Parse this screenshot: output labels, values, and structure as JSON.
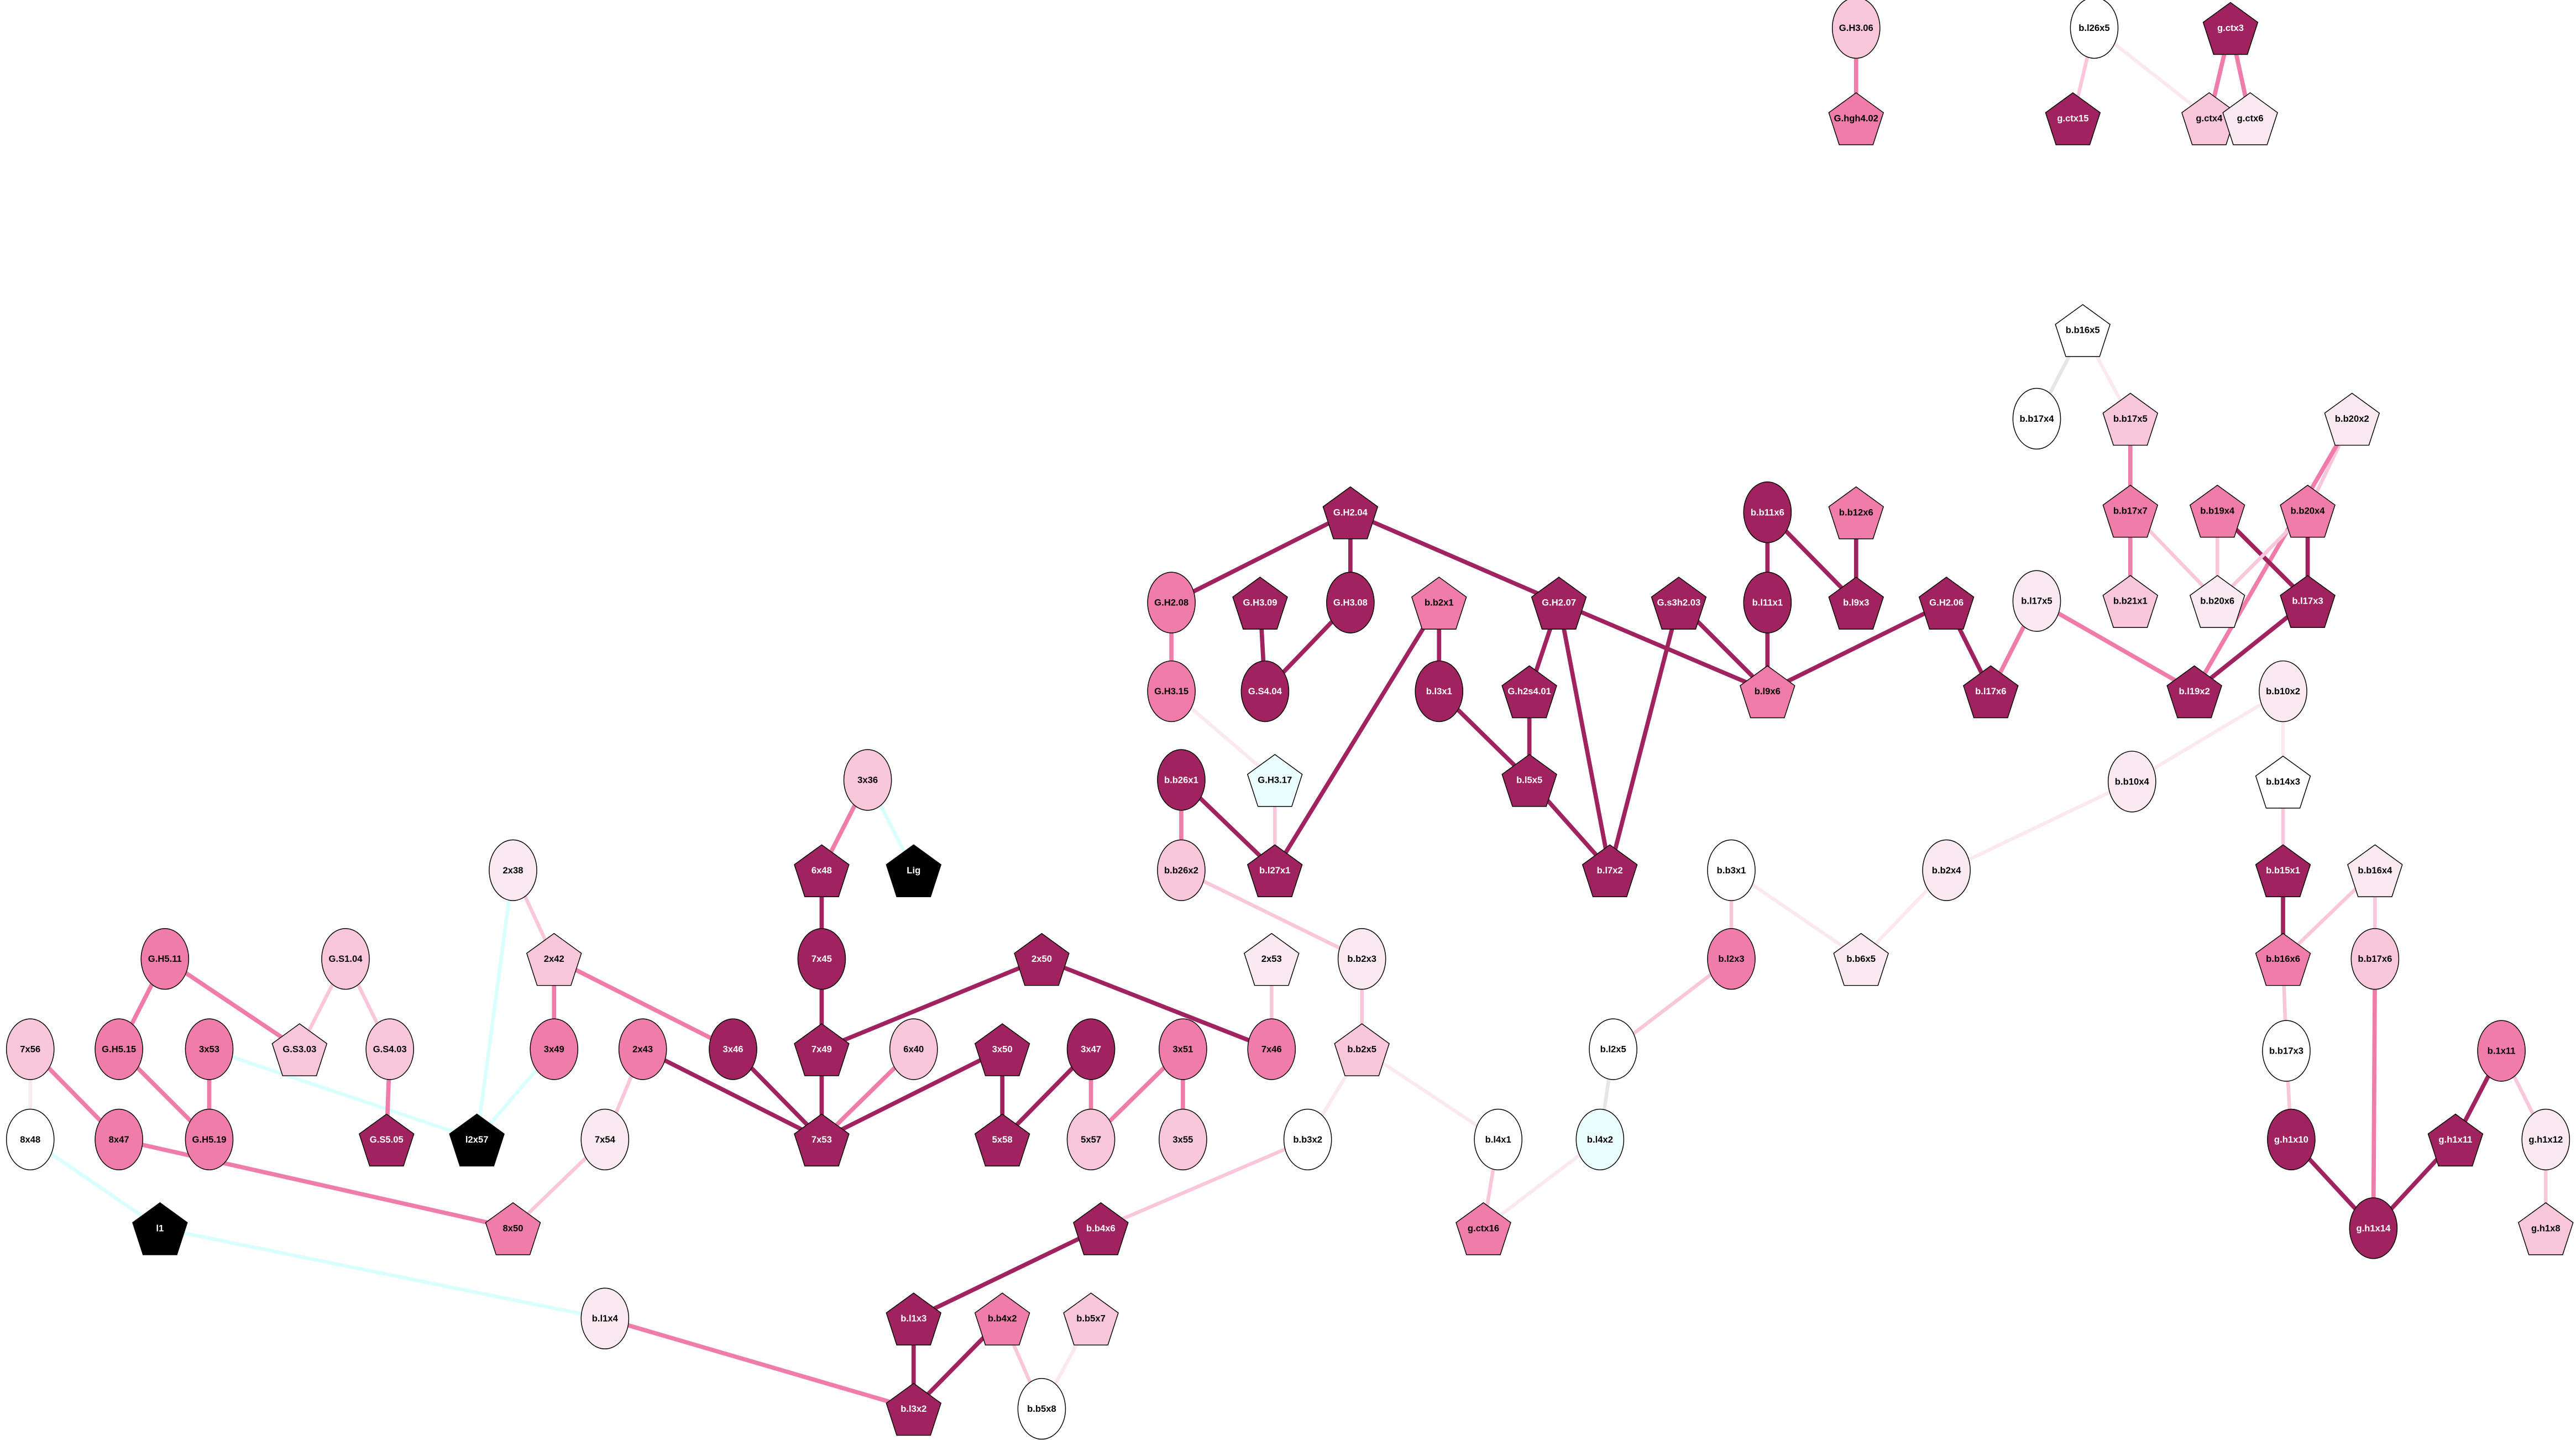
{
  "palette": {
    "white": "#ffffff",
    "pale": "#fbe9f2",
    "light": "#f9c6dc",
    "mid": "#f07caa",
    "dark": "#a0235f",
    "black": "#000000",
    "cyan": "#ebfefe",
    "cyan_edge": "#d9ffff",
    "grey_edge": "#e6e6e6"
  },
  "nodes": [
    {
      "id": "G.H3.06",
      "label": "G.H3.06",
      "shape": "ellipse",
      "color": "light"
    },
    {
      "id": "G.hgh4.02",
      "label": "G.hgh4.02",
      "shape": "pentagon",
      "color": "mid"
    },
    {
      "id": "b.l26x5",
      "label": "b.l26x5",
      "shape": "ellipse",
      "color": "white"
    },
    {
      "id": "g.ctx3",
      "label": "g.ctx3",
      "shape": "pentagon",
      "color": "dark"
    },
    {
      "id": "g.ctx15",
      "label": "g.ctx15",
      "shape": "pentagon",
      "color": "dark"
    },
    {
      "id": "g.ctx4",
      "label": "g.ctx4",
      "shape": "pentagon",
      "color": "light"
    },
    {
      "id": "g.ctx6",
      "label": "g.ctx6",
      "shape": "pentagon",
      "color": "pale"
    },
    {
      "id": "b.b16x5",
      "label": "b.b16x5",
      "shape": "pentagon",
      "color": "white"
    },
    {
      "id": "b.b17x4",
      "label": "b.b17x4",
      "shape": "ellipse",
      "color": "white"
    },
    {
      "id": "b.b17x5",
      "label": "b.b17x5",
      "shape": "pentagon",
      "color": "light"
    },
    {
      "id": "b.b20x2",
      "label": "b.b20x2",
      "shape": "pentagon",
      "color": "pale"
    },
    {
      "id": "b.b17x7",
      "label": "b.b17x7",
      "shape": "pentagon",
      "color": "mid"
    },
    {
      "id": "b.b19x4",
      "label": "b.b19x4",
      "shape": "pentagon",
      "color": "mid"
    },
    {
      "id": "b.b20x4",
      "label": "b.b20x4",
      "shape": "pentagon",
      "color": "mid"
    },
    {
      "id": "b.b21x1",
      "label": "b.b21x1",
      "shape": "pentagon",
      "color": "light"
    },
    {
      "id": "b.b20x6",
      "label": "b.b20x6",
      "shape": "pentagon",
      "color": "pale"
    },
    {
      "id": "b.l17x3",
      "label": "b.l17x3",
      "shape": "pentagon",
      "color": "dark"
    },
    {
      "id": "b.l17x5",
      "label": "b.l17x5",
      "shape": "ellipse",
      "color": "pale"
    },
    {
      "id": "b.l17x6",
      "label": "b.l17x6",
      "shape": "pentagon",
      "color": "dark"
    },
    {
      "id": "b.l19x2",
      "label": "b.l19x2",
      "shape": "pentagon",
      "color": "dark"
    },
    {
      "id": "b.b10x2",
      "label": "b.b10x2",
      "shape": "ellipse",
      "color": "pale"
    },
    {
      "id": "b.b10x4",
      "label": "b.b10x4",
      "shape": "ellipse",
      "color": "pale"
    },
    {
      "id": "b.b14x3",
      "label": "b.b14x3",
      "shape": "pentagon",
      "color": "white"
    },
    {
      "id": "b.b15x1",
      "label": "b.b15x1",
      "shape": "pentagon",
      "color": "dark"
    },
    {
      "id": "b.b16x4",
      "label": "b.b16x4",
      "shape": "pentagon",
      "color": "pale"
    },
    {
      "id": "b.b16x6",
      "label": "b.b16x6",
      "shape": "pentagon",
      "color": "mid"
    },
    {
      "id": "b.b17x6",
      "label": "b.b17x6",
      "shape": "ellipse",
      "color": "light"
    },
    {
      "id": "b.b17x3",
      "label": "b.b17x3",
      "shape": "ellipse",
      "color": "white"
    },
    {
      "id": "b.1x11",
      "label": "b.1x11",
      "shape": "ellipse",
      "color": "mid"
    },
    {
      "id": "g.h1x10",
      "label": "g.h1x10",
      "shape": "ellipse",
      "color": "dark"
    },
    {
      "id": "g.h1x11",
      "label": "g.h1x11",
      "shape": "pentagon",
      "color": "dark"
    },
    {
      "id": "g.h1x12",
      "label": "g.h1x12",
      "shape": "ellipse",
      "color": "pale"
    },
    {
      "id": "g.h1x14",
      "label": "g.h1x14",
      "shape": "ellipse",
      "color": "dark"
    },
    {
      "id": "g.h1x8",
      "label": "g.h1x8",
      "shape": "pentagon",
      "color": "light"
    },
    {
      "id": "G.H2.04",
      "label": "G.H2.04",
      "shape": "pentagon",
      "color": "dark"
    },
    {
      "id": "G.H2.08",
      "label": "G.H2.08",
      "shape": "ellipse",
      "color": "mid"
    },
    {
      "id": "G.H3.09",
      "label": "G.H3.09",
      "shape": "pentagon",
      "color": "dark"
    },
    {
      "id": "G.H3.08",
      "label": "G.H3.08",
      "shape": "ellipse",
      "color": "dark"
    },
    {
      "id": "b.b2x1",
      "label": "b.b2x1",
      "shape": "pentagon",
      "color": "mid"
    },
    {
      "id": "G.H2.07",
      "label": "G.H2.07",
      "shape": "pentagon",
      "color": "dark"
    },
    {
      "id": "G.s3h2.03",
      "label": "G.s3h2.03",
      "shape": "pentagon",
      "color": "dark"
    },
    {
      "id": "b.b11x6",
      "label": "b.b11x6",
      "shape": "ellipse",
      "color": "dark"
    },
    {
      "id": "b.b12x6",
      "label": "b.b12x6",
      "shape": "pentagon",
      "color": "mid"
    },
    {
      "id": "b.l11x1",
      "label": "b.l11x1",
      "shape": "ellipse",
      "color": "dark"
    },
    {
      "id": "b.l9x3",
      "label": "b.l9x3",
      "shape": "pentagon",
      "color": "dark"
    },
    {
      "id": "G.H2.06",
      "label": "G.H2.06",
      "shape": "pentagon",
      "color": "dark"
    },
    {
      "id": "G.H3.15",
      "label": "G.H3.15",
      "shape": "ellipse",
      "color": "mid"
    },
    {
      "id": "G.S4.04",
      "label": "G.S4.04",
      "shape": "ellipse",
      "color": "dark"
    },
    {
      "id": "b.l3x1",
      "label": "b.l3x1",
      "shape": "ellipse",
      "color": "dark"
    },
    {
      "id": "G.h2s4.01",
      "label": "G.h2s4.01",
      "shape": "pentagon",
      "color": "dark"
    },
    {
      "id": "b.l9x6",
      "label": "b.l9x6",
      "shape": "pentagon",
      "color": "mid"
    },
    {
      "id": "b.b26x1",
      "label": "b.b26x1",
      "shape": "ellipse",
      "color": "dark"
    },
    {
      "id": "G.H3.17",
      "label": "G.H3.17",
      "shape": "pentagon",
      "color": "cyan"
    },
    {
      "id": "b.l5x5",
      "label": "b.l5x5",
      "shape": "pentagon",
      "color": "dark"
    },
    {
      "id": "b.b26x2",
      "label": "b.b26x2",
      "shape": "ellipse",
      "color": "light"
    },
    {
      "id": "b.l27x1",
      "label": "b.l27x1",
      "shape": "pentagon",
      "color": "dark"
    },
    {
      "id": "b.l7x2",
      "label": "b.l7x2",
      "shape": "pentagon",
      "color": "dark"
    },
    {
      "id": "b.b3x1",
      "label": "b.b3x1",
      "shape": "ellipse",
      "color": "white"
    },
    {
      "id": "b.b2x4",
      "label": "b.b2x4",
      "shape": "ellipse",
      "color": "pale"
    },
    {
      "id": "b.b6x5",
      "label": "b.b6x5",
      "shape": "pentagon",
      "color": "pale"
    },
    {
      "id": "b.l2x3",
      "label": "b.l2x3",
      "shape": "ellipse",
      "color": "mid"
    },
    {
      "id": "b.l2x5",
      "label": "b.l2x5",
      "shape": "ellipse",
      "color": "white"
    },
    {
      "id": "b.l4x2",
      "label": "b.l4x2",
      "shape": "ellipse",
      "color": "cyan"
    },
    {
      "id": "b.l4x1",
      "label": "b.l4x1",
      "shape": "ellipse",
      "color": "white"
    },
    {
      "id": "g.ctx16",
      "label": "g.ctx16",
      "shape": "pentagon",
      "color": "mid"
    },
    {
      "id": "3x36",
      "label": "3x36",
      "shape": "ellipse",
      "color": "light"
    },
    {
      "id": "Lig",
      "label": "Lig",
      "shape": "pentagon",
      "color": "black"
    },
    {
      "id": "6x48",
      "label": "6x48",
      "shape": "pentagon",
      "color": "dark"
    },
    {
      "id": "2x50",
      "label": "2x50",
      "shape": "pentagon",
      "color": "dark"
    },
    {
      "id": "2x53",
      "label": "2x53",
      "shape": "pentagon",
      "color": "pale"
    },
    {
      "id": "b.b2x3",
      "label": "b.b2x3",
      "shape": "ellipse",
      "color": "pale"
    },
    {
      "id": "7x45",
      "label": "7x45",
      "shape": "ellipse",
      "color": "dark"
    },
    {
      "id": "7x49",
      "label": "7x49",
      "shape": "pentagon",
      "color": "dark"
    },
    {
      "id": "6x40",
      "label": "6x40",
      "shape": "ellipse",
      "color": "light"
    },
    {
      "id": "3x50",
      "label": "3x50",
      "shape": "pentagon",
      "color": "dark"
    },
    {
      "id": "3x47",
      "label": "3x47",
      "shape": "ellipse",
      "color": "dark"
    },
    {
      "id": "3x51",
      "label": "3x51",
      "shape": "ellipse",
      "color": "mid"
    },
    {
      "id": "7x46",
      "label": "7x46",
      "shape": "ellipse",
      "color": "mid"
    },
    {
      "id": "b.b2x5",
      "label": "b.b2x5",
      "shape": "pentagon",
      "color": "light"
    },
    {
      "id": "7x53",
      "label": "7x53",
      "shape": "pentagon",
      "color": "dark"
    },
    {
      "id": "5x58",
      "label": "5x58",
      "shape": "pentagon",
      "color": "dark"
    },
    {
      "id": "5x57",
      "label": "5x57",
      "shape": "ellipse",
      "color": "light"
    },
    {
      "id": "3x55",
      "label": "3x55",
      "shape": "ellipse",
      "color": "light"
    },
    {
      "id": "b.b3x2",
      "label": "b.b3x2",
      "shape": "ellipse",
      "color": "white"
    },
    {
      "id": "b.b4x6",
      "label": "b.b4x6",
      "shape": "pentagon",
      "color": "dark"
    },
    {
      "id": "b.l1x3",
      "label": "b.l1x3",
      "shape": "pentagon",
      "color": "dark"
    },
    {
      "id": "b.b4x2",
      "label": "b.b4x2",
      "shape": "pentagon",
      "color": "mid"
    },
    {
      "id": "b.b5x7",
      "label": "b.b5x7",
      "shape": "pentagon",
      "color": "light"
    },
    {
      "id": "b.l3x2",
      "label": "b.l3x2",
      "shape": "pentagon",
      "color": "dark"
    },
    {
      "id": "b.b5x8",
      "label": "b.b5x8",
      "shape": "ellipse",
      "color": "white"
    },
    {
      "id": "2x38",
      "label": "2x38",
      "shape": "ellipse",
      "color": "pale"
    },
    {
      "id": "G.H5.11",
      "label": "G.H5.11",
      "shape": "ellipse",
      "color": "mid"
    },
    {
      "id": "G.S1.04",
      "label": "G.S1.04",
      "shape": "ellipse",
      "color": "light"
    },
    {
      "id": "2x42",
      "label": "2x42",
      "shape": "pentagon",
      "color": "light"
    },
    {
      "id": "7x56",
      "label": "7x56",
      "shape": "ellipse",
      "color": "light"
    },
    {
      "id": "G.H5.15",
      "label": "G.H5.15",
      "shape": "ellipse",
      "color": "mid"
    },
    {
      "id": "3x53",
      "label": "3x53",
      "shape": "ellipse",
      "color": "mid"
    },
    {
      "id": "G.S3.03",
      "label": "G.S3.03",
      "shape": "pentagon",
      "color": "light"
    },
    {
      "id": "G.S4.03",
      "label": "G.S4.03",
      "shape": "ellipse",
      "color": "light"
    },
    {
      "id": "3x49",
      "label": "3x49",
      "shape": "ellipse",
      "color": "mid"
    },
    {
      "id": "2x43",
      "label": "2x43",
      "shape": "ellipse",
      "color": "mid"
    },
    {
      "id": "3x46",
      "label": "3x46",
      "shape": "ellipse",
      "color": "dark"
    },
    {
      "id": "8x48",
      "label": "8x48",
      "shape": "ellipse",
      "color": "white"
    },
    {
      "id": "8x47",
      "label": "8x47",
      "shape": "ellipse",
      "color": "mid"
    },
    {
      "id": "G.H5.19",
      "label": "G.H5.19",
      "shape": "ellipse",
      "color": "mid"
    },
    {
      "id": "G.S5.05",
      "label": "G.S5.05",
      "shape": "pentagon",
      "color": "dark"
    },
    {
      "id": "l2x57",
      "label": "l2x57",
      "shape": "pentagon",
      "color": "black"
    },
    {
      "id": "7x54",
      "label": "7x54",
      "shape": "ellipse",
      "color": "pale"
    },
    {
      "id": "l1",
      "label": "l1",
      "shape": "pentagon",
      "color": "black"
    },
    {
      "id": "8x50",
      "label": "8x50",
      "shape": "pentagon",
      "color": "mid"
    },
    {
      "id": "b.l1x4",
      "label": "b.l1x4",
      "shape": "ellipse",
      "color": "pale"
    }
  ],
  "edges": [
    [
      "G.H3.06",
      "G.hgh4.02",
      "mid"
    ],
    [
      "b.l26x5",
      "g.ctx15",
      "light"
    ],
    [
      "b.l26x5",
      "g.ctx4",
      "pale"
    ],
    [
      "g.ctx3",
      "g.ctx4",
      "mid"
    ],
    [
      "g.ctx3",
      "g.ctx6",
      "mid"
    ],
    [
      "b.b16x5",
      "b.b17x4",
      "grey_edge"
    ],
    [
      "b.b16x5",
      "b.b17x5",
      "pale"
    ],
    [
      "b.b17x5",
      "b.b17x7",
      "mid"
    ],
    [
      "b.b20x2",
      "b.b20x4",
      "light"
    ],
    [
      "b.b20x2",
      "b.l19x2",
      "mid"
    ],
    [
      "b.b17x7",
      "b.b21x1",
      "mid"
    ],
    [
      "b.b17x7",
      "b.b20x6",
      "light"
    ],
    [
      "b.b19x4",
      "b.b20x6",
      "light"
    ],
    [
      "b.b19x4",
      "b.l17x3",
      "dark"
    ],
    [
      "b.b20x4",
      "b.b20x6",
      "light"
    ],
    [
      "b.b20x4",
      "b.l17x3",
      "dark"
    ],
    [
      "b.l17x3",
      "b.l19x2",
      "dark"
    ],
    [
      "b.l17x5",
      "b.l17x6",
      "mid"
    ],
    [
      "b.l17x5",
      "b.l19x2",
      "mid"
    ],
    [
      "G.H2.06",
      "b.l17x6",
      "dark"
    ],
    [
      "b.b10x2",
      "b.b10x4",
      "pale"
    ],
    [
      "b.b10x2",
      "b.b14x3",
      "pale"
    ],
    [
      "b.b10x4",
      "b.b2x4",
      "pale"
    ],
    [
      "b.b14x3",
      "b.b15x1",
      "light"
    ],
    [
      "b.b15x1",
      "b.b16x6",
      "dark"
    ],
    [
      "b.b16x4",
      "b.b16x6",
      "light"
    ],
    [
      "b.b16x4",
      "b.b17x6",
      "light"
    ],
    [
      "b.b16x6",
      "b.b17x3",
      "light"
    ],
    [
      "b.b17x6",
      "g.h1x14",
      "mid"
    ],
    [
      "b.b17x3",
      "g.h1x10",
      "light"
    ],
    [
      "g.h1x10",
      "g.h1x14",
      "dark"
    ],
    [
      "g.h1x11",
      "g.h1x14",
      "dark"
    ],
    [
      "b.1x11",
      "g.h1x11",
      "dark"
    ],
    [
      "b.1x11",
      "g.h1x12",
      "light"
    ],
    [
      "g.h1x12",
      "g.h1x8",
      "light"
    ],
    [
      "G.H2.04",
      "G.H2.08",
      "dark"
    ],
    [
      "G.H2.04",
      "G.H3.08",
      "dark"
    ],
    [
      "G.H2.04",
      "G.H2.07",
      "dark"
    ],
    [
      "G.H2.08",
      "G.H3.15",
      "mid"
    ],
    [
      "G.H3.09",
      "G.S4.04",
      "dark"
    ],
    [
      "G.H3.08",
      "G.S4.04",
      "dark"
    ],
    [
      "b.b2x1",
      "b.l3x1",
      "dark"
    ],
    [
      "b.b2x1",
      "b.l27x1",
      "dark"
    ],
    [
      "G.H2.07",
      "G.h2s4.01",
      "dark"
    ],
    [
      "G.H2.07",
      "b.l7x2",
      "dark"
    ],
    [
      "G.H2.07",
      "b.l9x6",
      "dark"
    ],
    [
      "G.s3h2.03",
      "b.l7x2",
      "dark"
    ],
    [
      "G.s3h2.03",
      "b.l9x6",
      "dark"
    ],
    [
      "b.b11x6",
      "b.l11x1",
      "dark"
    ],
    [
      "b.b11x6",
      "b.l9x3",
      "dark"
    ],
    [
      "b.b12x6",
      "b.l9x3",
      "dark"
    ],
    [
      "b.l11x1",
      "b.l9x6",
      "dark"
    ],
    [
      "G.H2.06",
      "b.l9x6",
      "dark"
    ],
    [
      "G.H3.15",
      "G.H3.17",
      "pale"
    ],
    [
      "b.l3x1",
      "b.l5x5",
      "dark"
    ],
    [
      "G.h2s4.01",
      "b.l5x5",
      "dark"
    ],
    [
      "b.l5x5",
      "b.l7x2",
      "dark"
    ],
    [
      "b.b26x1",
      "b.b26x2",
      "mid"
    ],
    [
      "b.b26x1",
      "b.l27x1",
      "dark"
    ],
    [
      "G.H3.17",
      "b.l27x1",
      "light"
    ],
    [
      "b.b26x2",
      "b.b2x3",
      "light"
    ],
    [
      "b.b3x1",
      "b.l2x3",
      "light"
    ],
    [
      "b.b3x1",
      "b.b6x5",
      "pale"
    ],
    [
      "b.b2x4",
      "b.b6x5",
      "pale"
    ],
    [
      "b.l2x3",
      "b.l2x5",
      "light"
    ],
    [
      "b.l2x5",
      "b.l4x2",
      "grey_edge"
    ],
    [
      "b.l4x2",
      "g.ctx16",
      "pale"
    ],
    [
      "b.l4x1",
      "g.ctx16",
      "light"
    ],
    [
      "b.b2x5",
      "b.l4x1",
      "pale"
    ],
    [
      "b.b2x5",
      "b.b3x2",
      "pale"
    ],
    [
      "b.b2x3",
      "b.b2x5",
      "light"
    ],
    [
      "2x53",
      "7x46",
      "light"
    ],
    [
      "2x50",
      "7x49",
      "dark"
    ],
    [
      "2x50",
      "7x46",
      "dark"
    ],
    [
      "3x36",
      "6x48",
      "mid"
    ],
    [
      "3x36",
      "Lig",
      "cyan_edge"
    ],
    [
      "6x48",
      "7x45",
      "dark"
    ],
    [
      "7x45",
      "7x49",
      "dark"
    ],
    [
      "7x49",
      "7x53",
      "dark"
    ],
    [
      "6x40",
      "7x53",
      "mid"
    ],
    [
      "3x50",
      "7x53",
      "dark"
    ],
    [
      "3x50",
      "5x58",
      "dark"
    ],
    [
      "3x47",
      "5x58",
      "dark"
    ],
    [
      "3x47",
      "5x57",
      "mid"
    ],
    [
      "3x51",
      "5x57",
      "mid"
    ],
    [
      "3x51",
      "3x55",
      "mid"
    ],
    [
      "2x43",
      "7x53",
      "dark"
    ],
    [
      "3x46",
      "7x53",
      "dark"
    ],
    [
      "2x42",
      "3x46",
      "mid"
    ],
    [
      "2x42",
      "3x49",
      "mid"
    ],
    [
      "2x38",
      "2x42",
      "light"
    ],
    [
      "2x38",
      "l2x57",
      "cyan_edge"
    ],
    [
      "3x49",
      "l2x57",
      "cyan_edge"
    ],
    [
      "3x53",
      "l2x57",
      "cyan_edge"
    ],
    [
      "2x43",
      "7x54",
      "light"
    ],
    [
      "7x54",
      "8x50",
      "light"
    ],
    [
      "8x47",
      "8x50",
      "mid"
    ],
    [
      "G.H5.11",
      "G.H5.15",
      "mid"
    ],
    [
      "G.H5.11",
      "G.S3.03",
      "mid"
    ],
    [
      "G.S1.04",
      "G.S3.03",
      "light"
    ],
    [
      "G.S1.04",
      "G.S4.03",
      "light"
    ],
    [
      "G.S4.03",
      "G.S5.05",
      "mid"
    ],
    [
      "G.H5.15",
      "G.H5.19",
      "mid"
    ],
    [
      "3x53",
      "G.H5.19",
      "mid"
    ],
    [
      "7x56",
      "8x48",
      "pale"
    ],
    [
      "7x56",
      "8x47",
      "mid"
    ],
    [
      "8x48",
      "l1",
      "cyan_edge"
    ],
    [
      "l1",
      "b.l1x4",
      "cyan_edge"
    ],
    [
      "b.l1x4",
      "b.l3x2",
      "mid"
    ],
    [
      "b.b3x2",
      "b.b4x6",
      "light"
    ],
    [
      "b.b4x6",
      "b.l1x3",
      "dark"
    ],
    [
      "b.l1x3",
      "b.l3x2",
      "dark"
    ],
    [
      "b.b4x2",
      "b.l3x2",
      "dark"
    ],
    [
      "b.b4x2",
      "b.b5x8",
      "light"
    ],
    [
      "b.b5x7",
      "b.b5x8",
      "pale"
    ]
  ]
}
